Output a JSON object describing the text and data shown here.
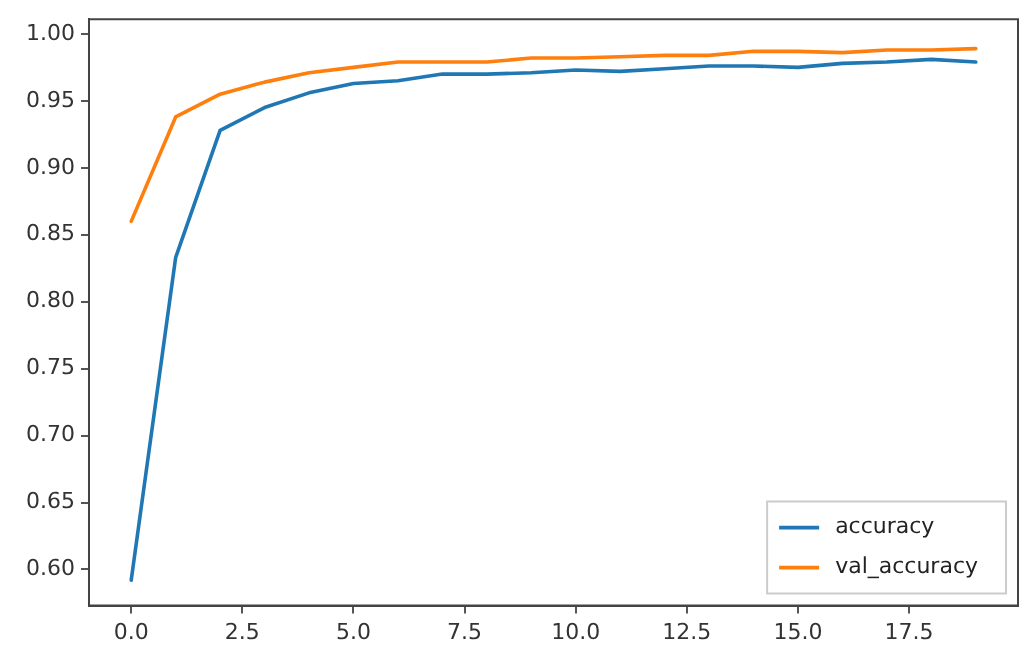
{
  "chart_data": {
    "type": "line",
    "x": [
      0,
      1,
      2,
      3,
      4,
      5,
      6,
      7,
      8,
      9,
      10,
      11,
      12,
      13,
      14,
      15,
      16,
      17,
      18,
      19
    ],
    "series": [
      {
        "name": "accuracy",
        "color": "#1f77b4",
        "values": [
          0.592,
          0.833,
          0.928,
          0.945,
          0.956,
          0.963,
          0.965,
          0.97,
          0.97,
          0.971,
          0.973,
          0.972,
          0.974,
          0.976,
          0.976,
          0.975,
          0.978,
          0.979,
          0.981,
          0.979
        ]
      },
      {
        "name": "val_accuracy",
        "color": "#ff7f0e",
        "values": [
          0.86,
          0.938,
          0.955,
          0.964,
          0.971,
          0.975,
          0.979,
          0.979,
          0.979,
          0.982,
          0.982,
          0.983,
          0.984,
          0.984,
          0.987,
          0.987,
          0.986,
          0.988,
          0.988,
          0.989
        ]
      }
    ],
    "xlim": [
      -0.95,
      19.95
    ],
    "xticks": [
      {
        "value": 0,
        "label": "0.0"
      },
      {
        "value": 2.5,
        "label": "2.5"
      },
      {
        "value": 5,
        "label": "5.0"
      },
      {
        "value": 7.5,
        "label": "7.5"
      },
      {
        "value": 10,
        "label": "10.0"
      },
      {
        "value": 12.5,
        "label": "12.5"
      },
      {
        "value": 15,
        "label": "15.0"
      },
      {
        "value": 17.5,
        "label": "17.5"
      }
    ],
    "ylim": [
      0.573,
      1.011
    ],
    "yticks": [
      {
        "value": 0.6,
        "label": "0.60"
      },
      {
        "value": 0.65,
        "label": "0.65"
      },
      {
        "value": 0.7,
        "label": "0.70"
      },
      {
        "value": 0.75,
        "label": "0.75"
      },
      {
        "value": 0.8,
        "label": "0.80"
      },
      {
        "value": 0.85,
        "label": "0.85"
      },
      {
        "value": 0.9,
        "label": "0.90"
      },
      {
        "value": 0.95,
        "label": "0.95"
      },
      {
        "value": 1.0,
        "label": "1.00"
      }
    ],
    "legend": "bottom right",
    "grid": false,
    "marker": "none",
    "line_style": "solid"
  }
}
